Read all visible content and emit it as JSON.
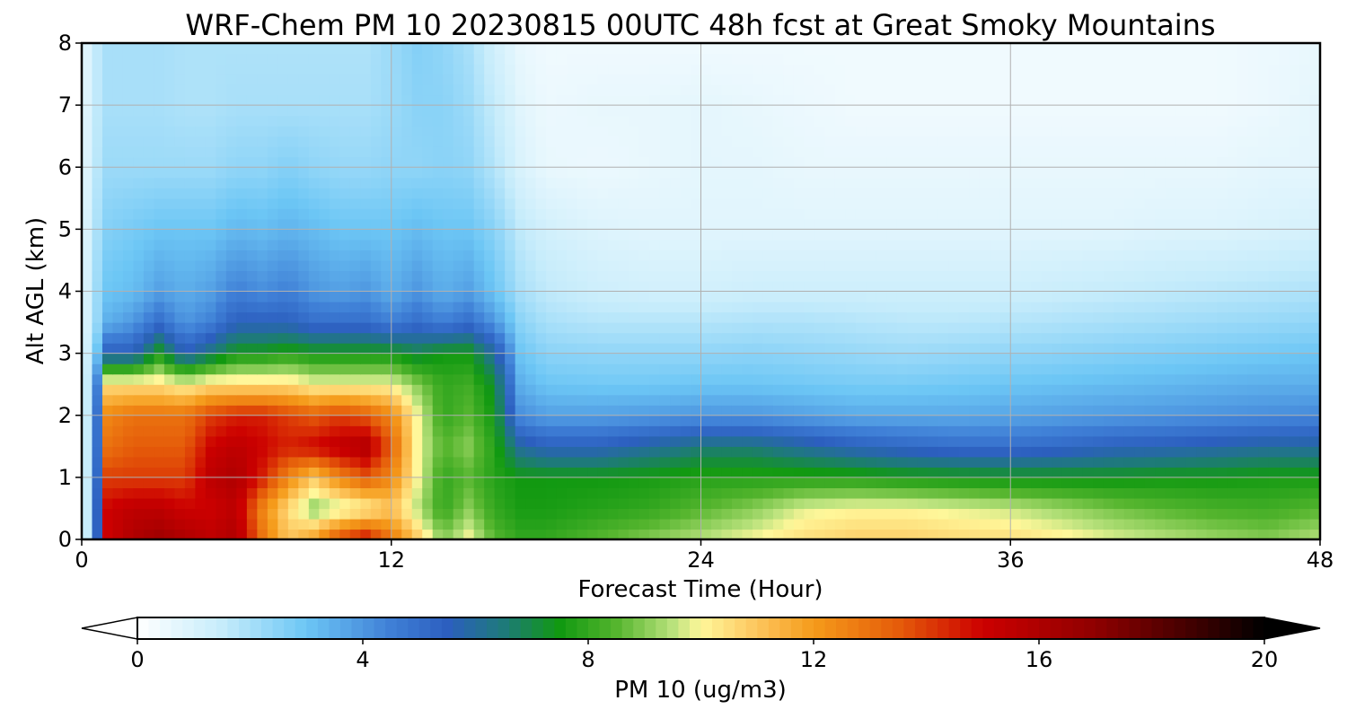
{
  "chart_data": {
    "type": "heatmap",
    "title": "WRF-Chem PM 10  20230815 00UTC 48h fcst at Great Smoky Mountains",
    "xlabel": "Forecast Time (Hour)",
    "ylabel": "Alt AGL (km)",
    "xlim": [
      0,
      48
    ],
    "ylim": [
      0,
      8
    ],
    "x_ticks": [
      "0",
      "12",
      "24",
      "36",
      "48"
    ],
    "y_ticks": [
      "0",
      "1",
      "2",
      "3",
      "4",
      "5",
      "6",
      "7",
      "8"
    ],
    "grid": true,
    "colorbar": {
      "label": "PM 10  (ug/m3)",
      "range": [
        0,
        20
      ],
      "ticks": [
        "0",
        "4",
        "8",
        "12",
        "16",
        "20"
      ],
      "extend": "both",
      "stops": [
        {
          "v": 0,
          "c": "#ffffff"
        },
        {
          "v": 1.5,
          "c": "#c6ecfb"
        },
        {
          "v": 3,
          "c": "#6cc6f5"
        },
        {
          "v": 4.5,
          "c": "#3f7fd6"
        },
        {
          "v": 5.5,
          "c": "#2c5fbf"
        },
        {
          "v": 6.5,
          "c": "#1e7a7a"
        },
        {
          "v": 7.5,
          "c": "#119911"
        },
        {
          "v": 8.5,
          "c": "#55b52e"
        },
        {
          "v": 9.5,
          "c": "#b9e27c"
        },
        {
          "v": 10,
          "c": "#fff79a"
        },
        {
          "v": 11,
          "c": "#fdc55d"
        },
        {
          "v": 12,
          "c": "#f59b1a"
        },
        {
          "v": 13.5,
          "c": "#e55c0a"
        },
        {
          "v": 15,
          "c": "#cc0000"
        },
        {
          "v": 17,
          "c": "#8f0000"
        },
        {
          "v": 19,
          "c": "#330000"
        },
        {
          "v": 20,
          "c": "#000000"
        }
      ]
    },
    "time_hours": [
      0,
      0.5,
      1,
      2,
      3,
      4,
      5,
      6,
      7,
      8,
      9,
      10,
      11,
      12,
      13,
      14,
      15,
      16,
      17,
      18,
      20,
      22,
      24,
      26,
      28,
      30,
      32,
      34,
      36,
      38,
      40,
      42,
      44,
      46,
      48
    ],
    "altitude_km": [
      0,
      0.5,
      1,
      1.5,
      2,
      2.5,
      3,
      3.5,
      4,
      5,
      6,
      7,
      8
    ],
    "values": [
      [
        0.5,
        3,
        15,
        16,
        16.5,
        16,
        15.5,
        16,
        13,
        11,
        12,
        14,
        15,
        13,
        11,
        9,
        10,
        8.5,
        8,
        8,
        8.5,
        9,
        9.5,
        10,
        10.5,
        10.8,
        10.8,
        10.6,
        10.5,
        10.2,
        9.8,
        9.5,
        9.2,
        9,
        9.5
      ],
      [
        0.5,
        3,
        15,
        15.5,
        15.5,
        15,
        15,
        15.5,
        12.5,
        10.5,
        9,
        9.5,
        10,
        11,
        9.5,
        8,
        9,
        8,
        7.6,
        7.6,
        7.8,
        8,
        8.5,
        9,
        9.8,
        10,
        10,
        9.8,
        9.6,
        9.2,
        8.8,
        8.5,
        8.3,
        8.2,
        8.5
      ],
      [
        0.5,
        3,
        14,
        14,
        14,
        14,
        15.5,
        16,
        14.5,
        12.5,
        11,
        12.5,
        13.5,
        12.5,
        10,
        8,
        8.5,
        7.8,
        7.5,
        7.5,
        7.5,
        7.6,
        7.8,
        7.8,
        7.8,
        7.8,
        7.6,
        7.5,
        7.4,
        7.4,
        7.4,
        7.5,
        7.5,
        7.6,
        7.6
      ],
      [
        0.5,
        3,
        13,
        13.5,
        13.5,
        13.5,
        15,
        15.5,
        15,
        14.5,
        15,
        15.5,
        16,
        13.5,
        10,
        8.5,
        9,
        7.8,
        6,
        5.5,
        5.5,
        6,
        6.5,
        6.5,
        6,
        5.5,
        5.2,
        5,
        5,
        5.2,
        5.5,
        5.6,
        5.8,
        6,
        6
      ],
      [
        0.5,
        3,
        12.5,
        13,
        13,
        13,
        14,
        14.5,
        14.5,
        14,
        13.5,
        14,
        13.5,
        12.5,
        10,
        8,
        8.5,
        7.5,
        4.2,
        3.8,
        3.8,
        3.9,
        4,
        4,
        3.8,
        3.6,
        3.6,
        3.6,
        3.7,
        3.8,
        3.9,
        4,
        4.1,
        4.2,
        4.3
      ],
      [
        0.5,
        3,
        10.5,
        10.5,
        10.5,
        10,
        10.5,
        10.5,
        10.5,
        10.5,
        10,
        10,
        10,
        10,
        9,
        8,
        8.2,
        7.2,
        3.5,
        3,
        2.9,
        2.9,
        3,
        3,
        2.9,
        2.8,
        2.8,
        2.9,
        3,
        3.1,
        3.2,
        3.3,
        3.4,
        3.5,
        3.5
      ],
      [
        0.5,
        2.5,
        5.5,
        5.5,
        7.5,
        5.5,
        6.5,
        7.5,
        7.5,
        7.8,
        7.5,
        7.5,
        7.5,
        7.5,
        7,
        7.5,
        7.5,
        6,
        3,
        2.5,
        2.4,
        2.4,
        2.4,
        2.5,
        2.4,
        2.3,
        2.2,
        2.3,
        2.4,
        2.5,
        2.6,
        2.7,
        2.8,
        2.9,
        3
      ],
      [
        0.5,
        2,
        3.5,
        4,
        5,
        4,
        4.5,
        5.5,
        5.5,
        5.5,
        5,
        5,
        5,
        4.5,
        5,
        4.5,
        5,
        4,
        2.5,
        2,
        1.8,
        1.8,
        1.8,
        1.9,
        1.9,
        1.8,
        1.7,
        1.7,
        1.8,
        1.9,
        2,
        2.1,
        2.2,
        2.3,
        2.4
      ],
      [
        0.5,
        2,
        3,
        3.2,
        3.8,
        3.5,
        3.8,
        4.5,
        4.2,
        4.5,
        4,
        3.8,
        4,
        3.5,
        4,
        3.5,
        3.8,
        3,
        2,
        1.6,
        1.3,
        1.2,
        1.2,
        1.3,
        1.3,
        1.3,
        1.3,
        1.3,
        1.3,
        1.4,
        1.5,
        1.6,
        1.7,
        1.8,
        1.9
      ],
      [
        0.5,
        1.8,
        2.6,
        2.8,
        3,
        3,
        3,
        3.3,
        3.2,
        3.4,
        3.2,
        3,
        3,
        3,
        3.2,
        3,
        3,
        2.5,
        1.6,
        1.2,
        0.9,
        0.8,
        0.8,
        0.8,
        0.8,
        0.8,
        0.8,
        0.8,
        0.8,
        0.8,
        0.8,
        0.9,
        0.9,
        1,
        1.1
      ],
      [
        0.5,
        1.6,
        2.2,
        2.2,
        2.2,
        2.2,
        2.2,
        2.4,
        2.4,
        2.6,
        2.4,
        2.3,
        2.3,
        2.4,
        2.4,
        2.5,
        2.4,
        1.8,
        1,
        0.6,
        0.5,
        0.6,
        0.7,
        0.7,
        0.6,
        0.6,
        0.6,
        0.6,
        0.6,
        0.6,
        0.6,
        0.6,
        0.6,
        0.7,
        0.7
      ],
      [
        0.5,
        1.5,
        2,
        2,
        2,
        1.9,
        1.9,
        2,
        2,
        2,
        2,
        2,
        2,
        2.2,
        2.5,
        2.5,
        2.2,
        1.5,
        0.8,
        0.5,
        0.6,
        0.6,
        0.7,
        0.6,
        0.5,
        0.4,
        0.4,
        0.4,
        0.4,
        0.4,
        0.4,
        0.4,
        0.4,
        0.5,
        0.7
      ],
      [
        0.5,
        1.5,
        2,
        2,
        2,
        1.9,
        1.9,
        1.9,
        1.9,
        1.9,
        1.9,
        1.9,
        1.9,
        2.2,
        2.6,
        2.4,
        2,
        1.2,
        0.6,
        0.4,
        0.4,
        0.4,
        0.4,
        0.4,
        0.4,
        0.4,
        0.4,
        0.4,
        0.4,
        0.4,
        0.4,
        0.4,
        0.4,
        0.5,
        0.6
      ]
    ]
  }
}
